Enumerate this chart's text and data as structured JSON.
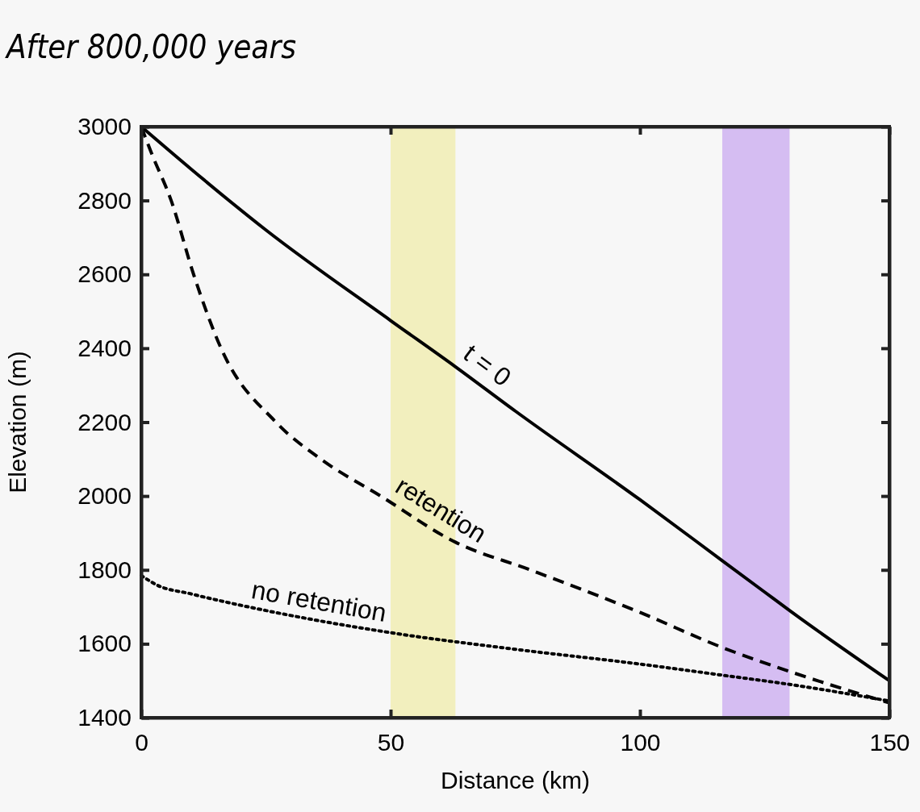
{
  "chart_data": {
    "type": "line",
    "title": "After 800,000 years",
    "xlabel": "Distance (km)",
    "ylabel": "Elevation (m)",
    "xlim": [
      0,
      150
    ],
    "xticks": [
      0,
      50,
      100,
      150
    ],
    "ylim": [
      1400,
      3000
    ],
    "yticks": [
      1400,
      1600,
      1800,
      2000,
      2200,
      2400,
      2600,
      2800,
      3000
    ],
    "grid": false,
    "bands": [
      {
        "axis": "x",
        "from": 50,
        "to": 63,
        "color": "#f2efbe"
      },
      {
        "axis": "x",
        "from": 116.5,
        "to": 130,
        "color": "#d5bdf2"
      }
    ],
    "series": [
      {
        "name": "t = 0",
        "color": "#000000",
        "line_style": "solid",
        "x": [
          0,
          10,
          25,
          50,
          63,
          75,
          100,
          116.5,
          125,
          130,
          150
        ],
        "values": [
          3000,
          2885,
          2720,
          2475,
          2350,
          2230,
          1990,
          1825,
          1740,
          1690,
          1500
        ]
      },
      {
        "name": "retention",
        "color": "#000000",
        "line_style": "dashed",
        "x": [
          0,
          2,
          6,
          10.5,
          16,
          27,
          36,
          48,
          63,
          78,
          100,
          116.5,
          130,
          150
        ],
        "values": [
          3000,
          2930,
          2800,
          2600,
          2400,
          2200,
          2100,
          2000,
          1875,
          1800,
          1685,
          1590,
          1525,
          1440
        ]
      },
      {
        "name": "no retention",
        "color": "#000000",
        "line_style": "dotted",
        "x": [
          0,
          3,
          10,
          25,
          50,
          75,
          100,
          116.5,
          130,
          150
        ],
        "values": [
          1785,
          1760,
          1735,
          1690,
          1630,
          1585,
          1545,
          1515,
          1490,
          1445
        ]
      }
    ]
  }
}
